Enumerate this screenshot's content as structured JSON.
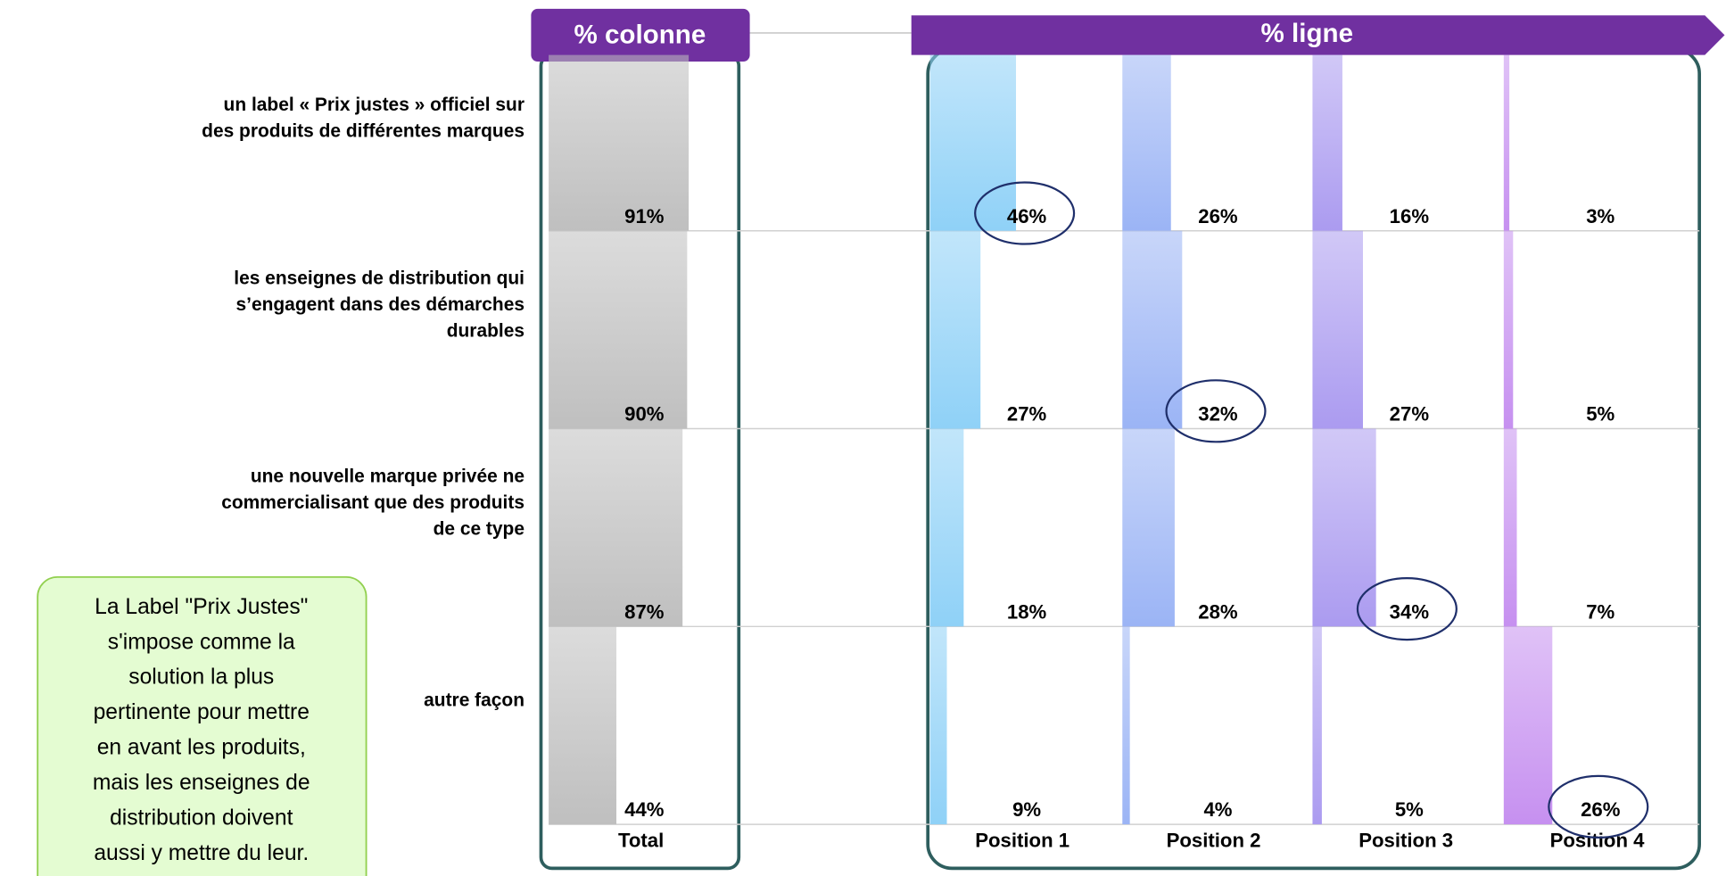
{
  "chart_data": {
    "type": "bar-matrix",
    "column_header": "% colonne",
    "row_header": "% ligne",
    "rows": [
      [
        "un label « Prix justes » officiel sur",
        "des produits de différentes marques"
      ],
      [
        "les enseignes de distribution qui",
        "s’engagent dans des démarches",
        "durables"
      ],
      [
        "une nouvelle marque privée ne",
        "commercialisant que des produits",
        "de ce type"
      ],
      [
        "autre façon"
      ]
    ],
    "series": [
      {
        "name": "Total",
        "color": "#bfbfbf",
        "values": [
          91,
          90,
          87,
          44
        ],
        "value_labels": [
          "91%",
          "90%",
          "87%",
          "44%"
        ]
      },
      {
        "name": "Position 1",
        "color": "#8fd1f7",
        "values": [
          46,
          27,
          18,
          9
        ],
        "value_labels": [
          "46%",
          "27%",
          "18%",
          "9%"
        ]
      },
      {
        "name": "Position 2",
        "color": "#9bb4f5",
        "values": [
          26,
          32,
          28,
          4
        ],
        "value_labels": [
          "26%",
          "32%",
          "28%",
          "4%"
        ]
      },
      {
        "name": "Position 3",
        "color": "#ab9bf0",
        "values": [
          16,
          27,
          34,
          5
        ],
        "value_labels": [
          "16%",
          "27%",
          "34%",
          "5%"
        ]
      },
      {
        "name": "Position 4",
        "color": "#c690f0",
        "values": [
          3,
          5,
          7,
          26
        ],
        "value_labels": [
          "3%",
          "5%",
          "7%",
          "26%"
        ]
      }
    ],
    "note": [
      "La Label \"Prix Justes\"",
      "s'impose comme la",
      "solution la plus",
      "pertinente pour mettre",
      "en avant les produits,",
      "mais les enseignes de",
      "distribution doivent",
      "aussi y mettre du leur."
    ]
  }
}
